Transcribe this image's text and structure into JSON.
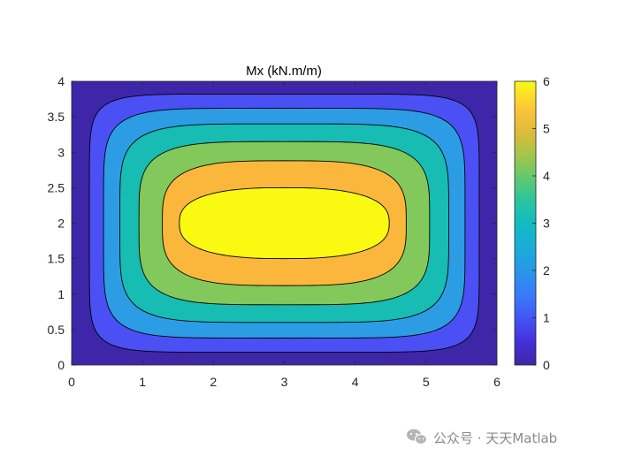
{
  "chart_data": {
    "type": "contourf",
    "title": "Mx (kN.m/m)",
    "xlim": [
      0,
      6
    ],
    "ylim": [
      0,
      4
    ],
    "x_ticks": [
      "0",
      "1",
      "2",
      "3",
      "4",
      "5",
      "6"
    ],
    "y_ticks": [
      "0",
      "0.5",
      "1",
      "1.5",
      "2",
      "2.5",
      "3",
      "3.5",
      "4"
    ],
    "levels": [
      0,
      1,
      2,
      3,
      4,
      5,
      6
    ],
    "level_colors": [
      "#3E26A8",
      "#4A50F4",
      "#2C9DE4",
      "#17BCB3",
      "#83C85A",
      "#FBB73B",
      "#F9F912"
    ],
    "contour_lines": [
      {
        "level": 1,
        "x_span": [
          0.25,
          5.75
        ],
        "y_span": [
          0.18,
          3.82
        ]
      },
      {
        "level": 2,
        "x_span": [
          0.45,
          5.55
        ],
        "y_span": [
          0.38,
          3.62
        ]
      },
      {
        "level": 3,
        "x_span": [
          0.68,
          5.32
        ],
        "y_span": [
          0.6,
          3.4
        ]
      },
      {
        "level": 4,
        "x_span": [
          0.95,
          5.05
        ],
        "y_span": [
          0.85,
          3.15
        ]
      },
      {
        "level": 5,
        "x_span": [
          1.28,
          4.72
        ],
        "y_span": [
          1.12,
          2.88
        ]
      },
      {
        "level": 6,
        "x_span": [
          1.52,
          4.48
        ],
        "y_span": [
          1.5,
          2.5
        ]
      }
    ],
    "colorbar": {
      "ticks": [
        "0",
        "1",
        "2",
        "3",
        "4",
        "5",
        "6"
      ],
      "colormap": "parula"
    }
  },
  "watermark": {
    "text": "公众号 · 天天Matlab",
    "icon": "wechat-icon"
  }
}
